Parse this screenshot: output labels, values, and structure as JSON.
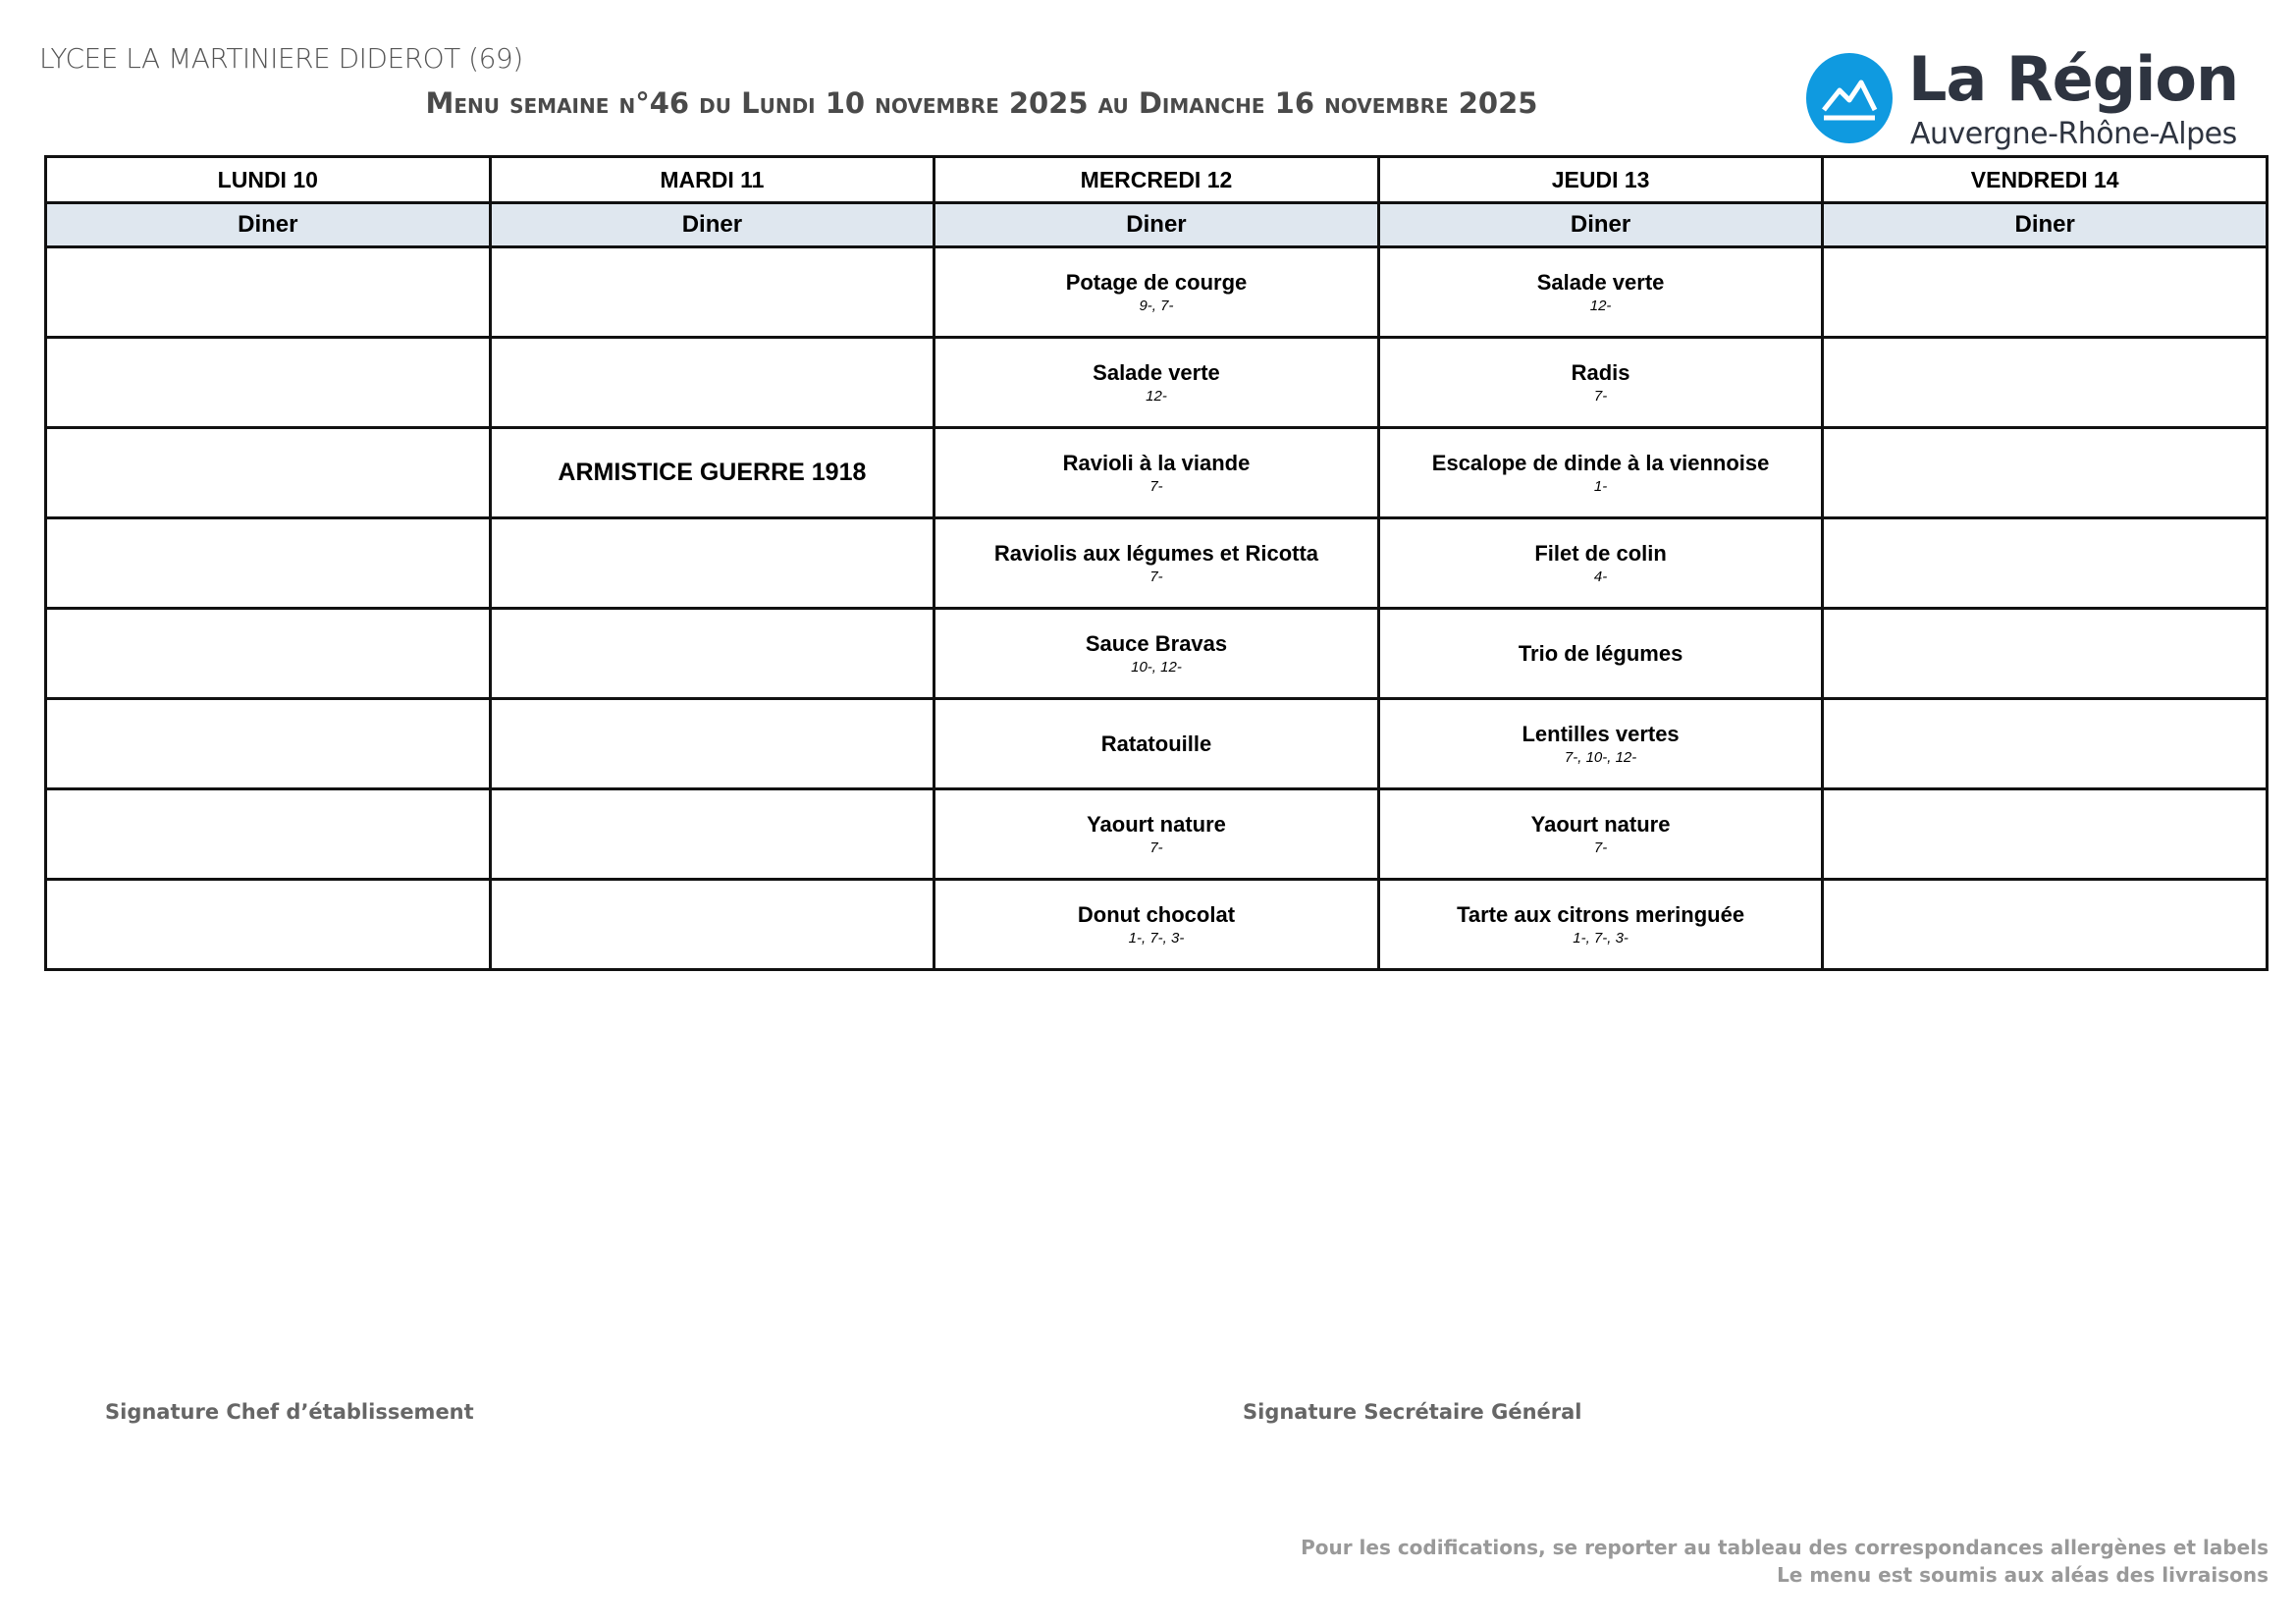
{
  "header": {
    "school": "LYCEE LA MARTINIERE DIDEROT (69)",
    "title": "Menu semaine n°46 du Lundi 10 novembre 2025 au Dimanche 16 novembre 2025",
    "logo": {
      "main": "La Région",
      "sub": "Auvergne-Rhône-Alpes",
      "color": "#0f9ae0"
    }
  },
  "days": [
    {
      "label": "LUNDI 10",
      "meal": "Diner"
    },
    {
      "label": "MARDI 11",
      "meal": "Diner"
    },
    {
      "label": "MERCREDI 12",
      "meal": "Diner"
    },
    {
      "label": "JEUDI 13",
      "meal": "Diner"
    },
    {
      "label": "VENDREDI 14",
      "meal": "Diner"
    }
  ],
  "mardi_note": "ARMISTICE GUERRE 1918",
  "mercredi": [
    {
      "dish": "Potage de courge",
      "allergens": "9-, 7-"
    },
    {
      "dish": "Salade verte",
      "allergens": "12-"
    },
    {
      "dish": "Ravioli à la viande",
      "allergens": "7-"
    },
    {
      "dish": "Raviolis aux légumes et Ricotta",
      "allergens": "7-"
    },
    {
      "dish": "Sauce Bravas",
      "allergens": "10-, 12-"
    },
    {
      "dish": "Ratatouille",
      "allergens": ""
    },
    {
      "dish": "Yaourt nature",
      "allergens": "7-"
    },
    {
      "dish": "Donut chocolat",
      "allergens": "1-, 7-, 3-"
    }
  ],
  "jeudi": [
    {
      "dish": "Salade verte",
      "allergens": "12-"
    },
    {
      "dish": "Radis",
      "allergens": "7-"
    },
    {
      "dish": "Escalope de dinde à la viennoise",
      "allergens": "1-"
    },
    {
      "dish": "Filet de colin",
      "allergens": "4-"
    },
    {
      "dish": "Trio de légumes",
      "allergens": ""
    },
    {
      "dish": "Lentilles vertes",
      "allergens": "7-, 10-, 12-"
    },
    {
      "dish": "Yaourt nature",
      "allergens": "7-"
    },
    {
      "dish": "Tarte aux citrons meringuée",
      "allergens": "1-, 7-, 3-"
    }
  ],
  "signatures": {
    "left": "Signature Chef d’établissement",
    "right": "Signature Secrétaire Général"
  },
  "footer": {
    "line1": "Pour les codifications, se reporter au tableau des correspondances allergènes et labels",
    "line2": "Le menu est soumis aux aléas des livraisons"
  }
}
